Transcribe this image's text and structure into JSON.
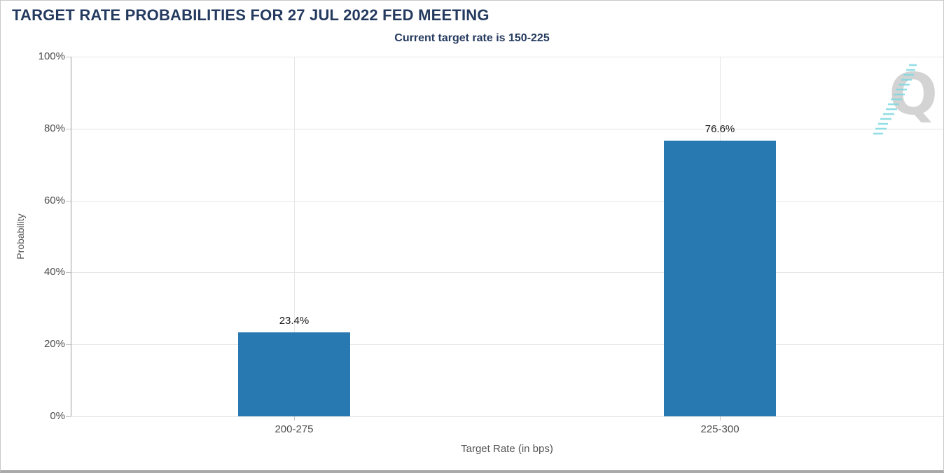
{
  "chart_data": {
    "type": "bar",
    "title": "TARGET RATE PROBABILITIES FOR 27 JUL 2022 FED MEETING",
    "subtitle": "Current target rate is 150-225",
    "xlabel": "Target Rate (in bps)",
    "ylabel": "Probability",
    "categories": [
      "200-275",
      "225-300"
    ],
    "values": [
      23.4,
      76.6
    ],
    "value_labels": [
      "23.4%",
      "76.6%"
    ],
    "ylim": [
      0,
      100
    ],
    "yticks": [
      0,
      20,
      40,
      60,
      80,
      100
    ],
    "ytick_labels": [
      "0%",
      "20%",
      "40%",
      "60%",
      "80%",
      "100%"
    ],
    "grid": true,
    "legend": "none",
    "bar_color": "#2878b2",
    "bar_center_fractions": [
      0.256,
      0.744
    ]
  },
  "watermark": {
    "letter": "Q"
  },
  "colors": {
    "bar_blue": "#2878b2",
    "title_navy": "#243a5e",
    "gridline": "#e6e6e6",
    "axis_line": "#9a9a9a",
    "tick_label": "#4d4d4d",
    "value_label": "#1a1a1a",
    "watermark_gray": "#cccccc",
    "watermark_teal": "#7fd9e0",
    "border": "#c8c8c8"
  }
}
